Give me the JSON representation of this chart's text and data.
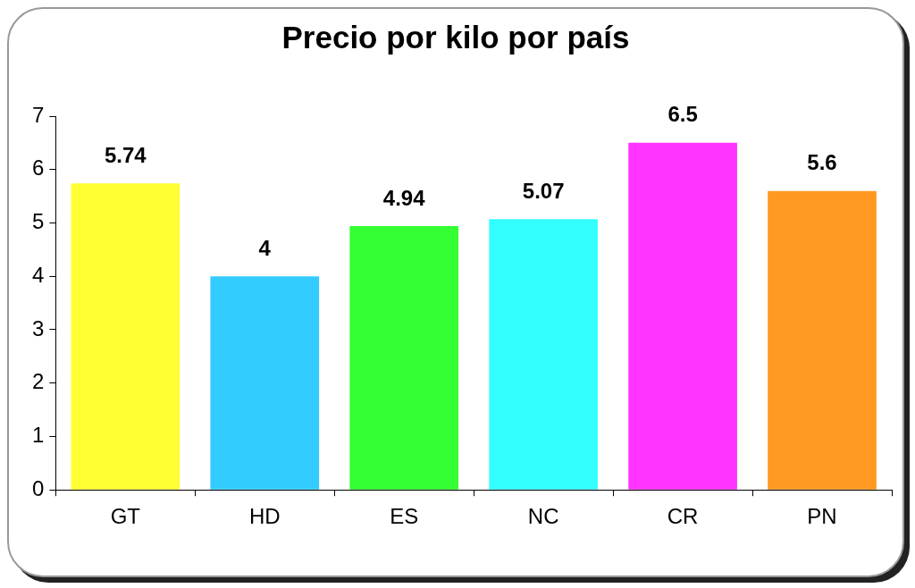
{
  "chart_data": {
    "type": "bar",
    "title": "Precio por kilo por país",
    "categories": [
      "GT",
      "HD",
      "ES",
      "NC",
      "CR",
      "PN"
    ],
    "values": [
      5.74,
      4,
      4.94,
      5.07,
      6.5,
      5.6
    ],
    "colors": [
      "#ffff33",
      "#33ccff",
      "#33ff33",
      "#33ffff",
      "#ff33ff",
      "#ff9922"
    ],
    "ylim": [
      0,
      7
    ],
    "yticks": [
      0,
      1,
      2,
      3,
      4,
      5,
      6,
      7
    ],
    "grid": false,
    "legend": false,
    "data_labels": true
  }
}
